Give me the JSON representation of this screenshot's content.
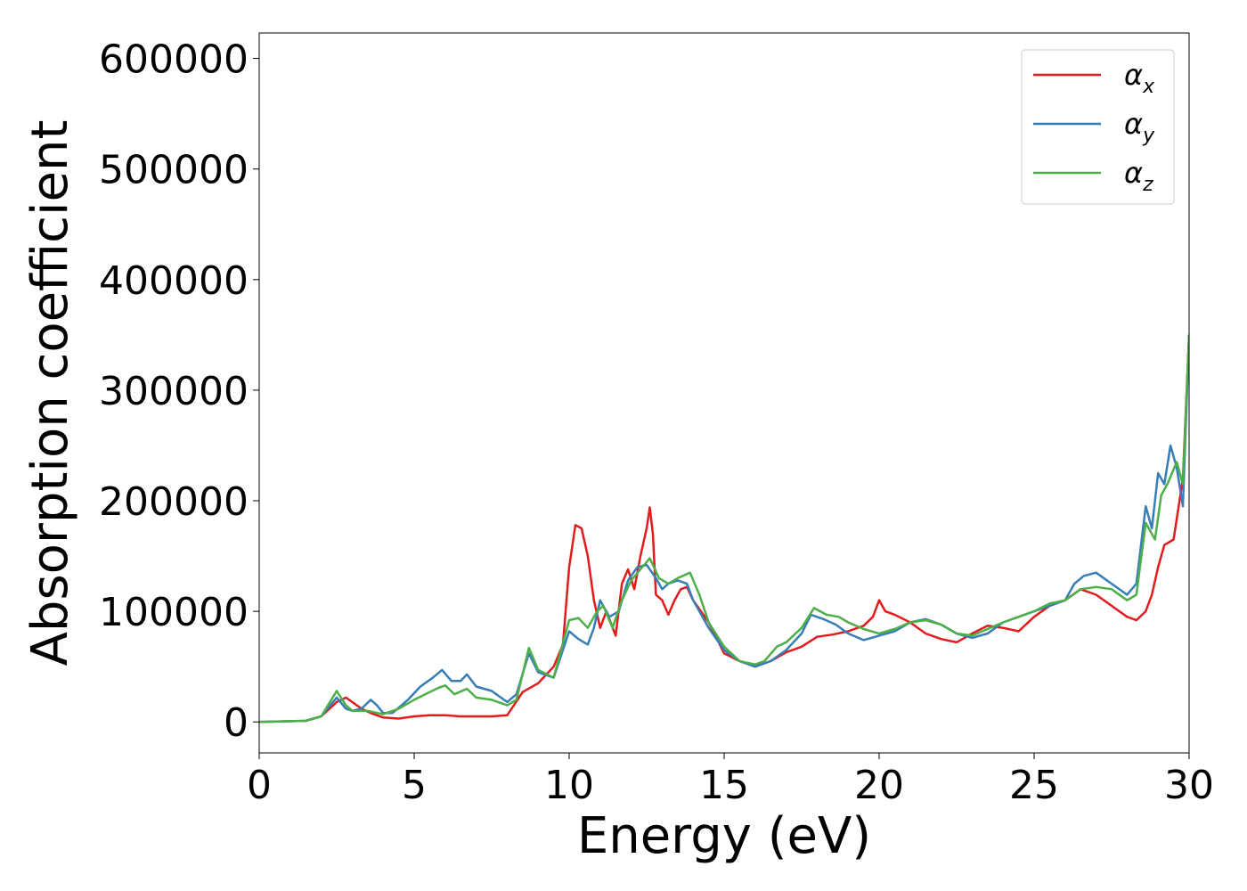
{
  "chart_data": {
    "type": "line",
    "xlabel": "Energy (eV)",
    "ylabel": "Absorption coefficient",
    "xlim": [
      0,
      30
    ],
    "ylim": [
      -28000,
      623000
    ],
    "xticks": [
      0,
      5,
      10,
      15,
      20,
      25,
      30
    ],
    "yticks": [
      0,
      100000,
      200000,
      300000,
      400000,
      500000,
      600000
    ],
    "grid": false,
    "legend_position": "top-right",
    "series": [
      {
        "name": "α",
        "subscript": "x",
        "color": "#e41a1c",
        "x": [
          0,
          1.5,
          2.0,
          2.5,
          2.8,
          3.0,
          3.3,
          3.6,
          4.0,
          4.5,
          5.0,
          5.5,
          6.0,
          6.5,
          7.0,
          7.5,
          8.0,
          8.5,
          9.0,
          9.5,
          9.8,
          10.0,
          10.2,
          10.4,
          10.6,
          10.8,
          11.0,
          11.2,
          11.5,
          11.7,
          11.9,
          12.1,
          12.3,
          12.5,
          12.6,
          12.7,
          12.8,
          13.0,
          13.2,
          13.4,
          13.6,
          13.8,
          14.0,
          14.5,
          15.0,
          15.5,
          16.0,
          16.5,
          17.0,
          17.5,
          18.0,
          18.5,
          19.0,
          19.5,
          19.8,
          20.0,
          20.2,
          20.5,
          21.0,
          21.5,
          22.0,
          22.5,
          23.0,
          23.5,
          24.0,
          24.5,
          25.0,
          25.5,
          26.0,
          26.5,
          27.0,
          27.5,
          28.0,
          28.3,
          28.6,
          28.8,
          29.0,
          29.2,
          29.5,
          29.8,
          30.0
        ],
        "y": [
          0,
          1000,
          5000,
          18000,
          22000,
          18000,
          12000,
          8000,
          4000,
          3000,
          5000,
          6000,
          6000,
          5000,
          5000,
          5000,
          6000,
          27000,
          35000,
          50000,
          70000,
          140000,
          178000,
          175000,
          150000,
          110000,
          85000,
          100000,
          78000,
          125000,
          138000,
          120000,
          150000,
          175000,
          194000,
          170000,
          115000,
          110000,
          97000,
          110000,
          120000,
          122000,
          110000,
          90000,
          62000,
          55000,
          50000,
          55000,
          63000,
          68000,
          77000,
          79000,
          82000,
          87000,
          95000,
          110000,
          100000,
          97000,
          90000,
          80000,
          75000,
          72000,
          80000,
          87000,
          85000,
          82000,
          95000,
          105000,
          110000,
          120000,
          115000,
          105000,
          95000,
          92000,
          100000,
          115000,
          140000,
          160000,
          165000,
          220000,
          350000
        ]
      },
      {
        "name": "α",
        "subscript": "y",
        "color": "#377eb8",
        "x": [
          0,
          1.5,
          2.0,
          2.5,
          2.8,
          3.0,
          3.3,
          3.6,
          3.8,
          4.0,
          4.3,
          4.8,
          5.2,
          5.6,
          5.9,
          6.2,
          6.5,
          6.7,
          7.0,
          7.5,
          8.0,
          8.3,
          8.7,
          9.0,
          9.5,
          10.0,
          10.3,
          10.6,
          10.8,
          11.0,
          11.3,
          11.6,
          11.9,
          12.2,
          12.5,
          12.8,
          13.0,
          13.2,
          13.5,
          13.8,
          14.0,
          14.5,
          15.0,
          15.5,
          16.0,
          16.5,
          17.0,
          17.5,
          17.8,
          18.2,
          18.6,
          19.0,
          19.5,
          20.0,
          20.5,
          21.0,
          21.5,
          22.0,
          22.5,
          23.0,
          23.5,
          24.0,
          24.5,
          25.0,
          25.5,
          26.0,
          26.3,
          26.6,
          27.0,
          27.5,
          28.0,
          28.3,
          28.6,
          28.8,
          29.0,
          29.2,
          29.4,
          29.6,
          29.8,
          30.0
        ],
        "y": [
          0,
          1000,
          5000,
          22000,
          12000,
          10000,
          12000,
          20000,
          15000,
          8000,
          8000,
          20000,
          32000,
          40000,
          47000,
          37000,
          37000,
          43000,
          32000,
          28000,
          18000,
          25000,
          62000,
          45000,
          40000,
          82000,
          75000,
          70000,
          85000,
          110000,
          95000,
          100000,
          128000,
          140000,
          142000,
          130000,
          120000,
          125000,
          128000,
          125000,
          110000,
          85000,
          65000,
          55000,
          50000,
          55000,
          65000,
          80000,
          97000,
          93000,
          88000,
          80000,
          74000,
          78000,
          82000,
          90000,
          93000,
          88000,
          80000,
          76000,
          80000,
          90000,
          95000,
          100000,
          105000,
          110000,
          125000,
          132000,
          135000,
          125000,
          115000,
          125000,
          195000,
          175000,
          225000,
          215000,
          250000,
          230000,
          195000,
          350000
        ]
      },
      {
        "name": "α",
        "subscript": "z",
        "color": "#4daf4a",
        "x": [
          0,
          1.5,
          2.0,
          2.5,
          2.8,
          3.0,
          3.5,
          4.0,
          4.5,
          5.0,
          5.5,
          5.8,
          6.0,
          6.3,
          6.7,
          7.0,
          7.5,
          8.0,
          8.3,
          8.7,
          9.0,
          9.5,
          10.0,
          10.3,
          10.6,
          10.9,
          11.1,
          11.4,
          11.7,
          12.0,
          12.3,
          12.6,
          12.9,
          13.2,
          13.5,
          13.9,
          14.2,
          14.5,
          15.0,
          15.5,
          16.0,
          16.3,
          16.7,
          17.0,
          17.5,
          17.9,
          18.3,
          18.7,
          19.0,
          19.5,
          20.0,
          20.5,
          21.0,
          21.5,
          22.0,
          22.5,
          23.0,
          23.5,
          24.0,
          24.5,
          25.0,
          25.5,
          26.0,
          26.5,
          27.0,
          27.5,
          28.0,
          28.3,
          28.6,
          28.9,
          29.1,
          29.3,
          29.6,
          29.8,
          30.0
        ],
        "y": [
          0,
          1000,
          5000,
          28000,
          15000,
          10000,
          10000,
          7000,
          12000,
          20000,
          27000,
          31000,
          33000,
          25000,
          30000,
          22000,
          20000,
          15000,
          20000,
          67000,
          47000,
          40000,
          92000,
          94000,
          85000,
          100000,
          105000,
          85000,
          110000,
          128000,
          138000,
          148000,
          130000,
          125000,
          130000,
          135000,
          115000,
          90000,
          68000,
          55000,
          52000,
          55000,
          68000,
          72000,
          85000,
          103000,
          97000,
          95000,
          90000,
          84000,
          80000,
          84000,
          90000,
          92000,
          88000,
          80000,
          78000,
          84000,
          90000,
          95000,
          100000,
          107000,
          110000,
          120000,
          122000,
          120000,
          110000,
          115000,
          180000,
          165000,
          205000,
          215000,
          235000,
          215000,
          350000
        ]
      }
    ]
  }
}
